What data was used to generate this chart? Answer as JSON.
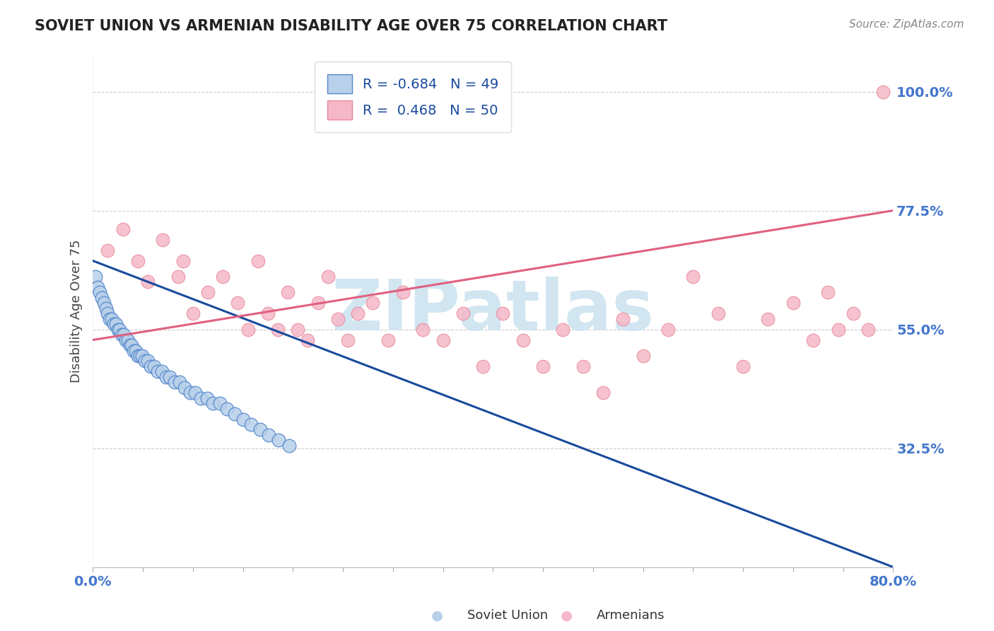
{
  "title": "SOVIET UNION VS ARMENIAN DISABILITY AGE OVER 75 CORRELATION CHART",
  "source": "Source: ZipAtlas.com",
  "xmin": 0.0,
  "xmax": 80.0,
  "ymin": 10.0,
  "ymax": 107.0,
  "yticks": [
    32.5,
    55.0,
    77.5,
    100.0
  ],
  "ytick_labels": [
    "32.5%",
    "55.0%",
    "77.5%",
    "100.0%"
  ],
  "xticks": [
    0.0,
    80.0
  ],
  "xtick_labels": [
    "0.0%",
    "80.0%"
  ],
  "legend_label1": "Soviet Union",
  "legend_label2": "Armenians",
  "R1": -0.684,
  "N1": 49,
  "R2": 0.468,
  "N2": 50,
  "color_soviet_fill": "#b8d0ea",
  "color_soviet_edge": "#5588cc",
  "color_armenian_fill": "#f5b8c8",
  "color_armenian_edge": "#e88898",
  "color_line_soviet": "#1a4a9e",
  "color_line_armenian": "#e06080",
  "color_title": "#222222",
  "color_source": "#888888",
  "color_axis_ticks": "#4477cc",
  "color_grid": "#cccccc",
  "watermark_text": "ZIPatlas",
  "watermark_color": "#cce4f0",
  "soviet_x": [
    0.3,
    0.5,
    0.7,
    0.9,
    1.1,
    1.3,
    1.5,
    1.7,
    1.9,
    2.1,
    2.3,
    2.5,
    2.7,
    2.9,
    3.1,
    3.3,
    3.5,
    3.7,
    3.9,
    4.1,
    4.3,
    4.5,
    4.7,
    4.9,
    5.2,
    5.5,
    5.8,
    6.1,
    6.5,
    6.9,
    7.3,
    7.7,
    8.2,
    8.7,
    9.2,
    9.7,
    10.2,
    10.8,
    11.4,
    12.0,
    12.7,
    13.4,
    14.2,
    15.0,
    15.8,
    16.7,
    17.6,
    18.6,
    19.6
  ],
  "soviet_y": [
    65,
    63,
    62,
    61,
    60,
    59,
    58,
    57,
    57,
    56,
    56,
    55,
    55,
    54,
    54,
    53,
    53,
    52,
    52,
    51,
    51,
    50,
    50,
    50,
    49,
    49,
    48,
    48,
    47,
    47,
    46,
    46,
    45,
    45,
    44,
    43,
    43,
    42,
    42,
    41,
    41,
    40,
    39,
    38,
    37,
    36,
    35,
    34,
    33
  ],
  "armenian_x": [
    1.5,
    3.0,
    4.5,
    5.5,
    7.0,
    8.5,
    9.0,
    10.0,
    11.5,
    13.0,
    14.5,
    15.5,
    16.5,
    17.5,
    18.5,
    19.5,
    20.5,
    21.5,
    22.5,
    23.5,
    24.5,
    25.5,
    26.5,
    28.0,
    29.5,
    31.0,
    33.0,
    35.0,
    37.0,
    39.0,
    41.0,
    43.0,
    45.0,
    47.0,
    49.0,
    51.0,
    53.0,
    55.0,
    57.5,
    60.0,
    62.5,
    65.0,
    67.5,
    70.0,
    72.0,
    73.5,
    74.5,
    76.0,
    77.5,
    79.0
  ],
  "armenian_y": [
    70,
    74,
    68,
    64,
    72,
    65,
    68,
    58,
    62,
    65,
    60,
    55,
    68,
    58,
    55,
    62,
    55,
    53,
    60,
    65,
    57,
    53,
    58,
    60,
    53,
    62,
    55,
    53,
    58,
    48,
    58,
    53,
    48,
    55,
    48,
    43,
    57,
    50,
    55,
    65,
    58,
    48,
    57,
    60,
    53,
    62,
    55,
    58,
    55,
    100
  ],
  "sov_line_x0": 0.0,
  "sov_line_x1": 80.0,
  "sov_line_y0": 68.0,
  "sov_line_y1": 10.0,
  "arm_line_x0": 0.0,
  "arm_line_x1": 80.0,
  "arm_line_y0": 53.0,
  "arm_line_y1": 77.5
}
